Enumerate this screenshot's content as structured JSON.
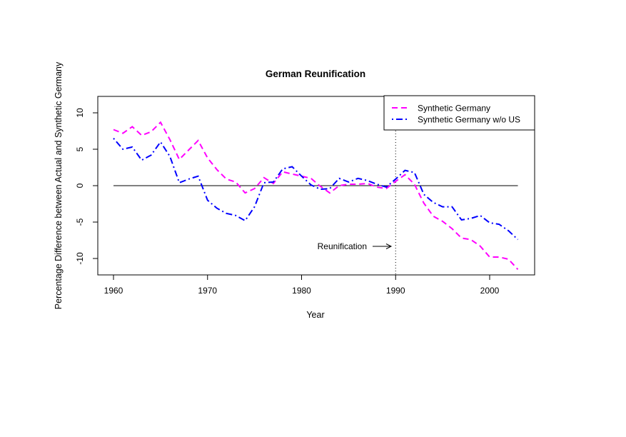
{
  "chart_data": {
    "type": "line",
    "title": "German Reunification",
    "xlabel": "Year",
    "ylabel": "Percentage Difference between Actual and Synthetic Germany",
    "xlim": [
      1960,
      2003
    ],
    "ylim": [
      -12,
      12
    ],
    "x_ticks": [
      1960,
      1970,
      1980,
      1990,
      2000
    ],
    "y_ticks": [
      -10,
      -5,
      0,
      5,
      10
    ],
    "x": [
      1960,
      1961,
      1962,
      1963,
      1964,
      1965,
      1966,
      1967,
      1968,
      1969,
      1970,
      1971,
      1972,
      1973,
      1974,
      1975,
      1976,
      1977,
      1978,
      1979,
      1980,
      1981,
      1982,
      1983,
      1984,
      1985,
      1986,
      1987,
      1988,
      1989,
      1990,
      1991,
      1992,
      1993,
      1994,
      1995,
      1996,
      1997,
      1998,
      1999,
      2000,
      2001,
      2002,
      2003
    ],
    "series": [
      {
        "name": "Synthetic Germany",
        "color": "#FF00FF",
        "dash": "dashed",
        "values": [
          7.7,
          7.2,
          8.1,
          6.9,
          7.4,
          8.7,
          6.3,
          3.6,
          4.9,
          6.2,
          3.8,
          2.2,
          0.9,
          0.5,
          -1.0,
          -0.4,
          1.1,
          0.3,
          1.9,
          1.6,
          1.3,
          1.0,
          -0.1,
          -1.0,
          0.0,
          0.2,
          0.2,
          0.3,
          -0.2,
          -0.4,
          0.6,
          1.5,
          0.2,
          -2.4,
          -4.2,
          -4.9,
          -5.9,
          -7.2,
          -7.4,
          -8.3,
          -9.8,
          -9.8,
          -10.1,
          -11.5
        ]
      },
      {
        "name": "Synthetic Germany w/o US",
        "color": "#0000FF",
        "dash": "dotdash",
        "values": [
          6.5,
          5.0,
          5.3,
          3.5,
          4.2,
          6.0,
          4.0,
          0.4,
          0.9,
          1.3,
          -2.0,
          -3.1,
          -3.8,
          -4.1,
          -4.8,
          -2.9,
          0.4,
          0.5,
          2.3,
          2.6,
          1.3,
          0.1,
          -0.5,
          -0.4,
          1.0,
          0.5,
          1.0,
          0.7,
          0.2,
          -0.2,
          0.9,
          2.1,
          1.8,
          -1.2,
          -2.3,
          -2.9,
          -2.9,
          -4.7,
          -4.5,
          -4.1,
          -5.1,
          -5.3,
          -6.2,
          -7.4
        ]
      }
    ],
    "reference_line": {
      "y": 0,
      "color": "#000000"
    },
    "vertical_line": {
      "x": 1990,
      "style": "dotted"
    },
    "annotation": {
      "text": "Reunification",
      "points_to_x": 1990,
      "y": -8.5
    },
    "legend": "top-right",
    "grid": false
  }
}
